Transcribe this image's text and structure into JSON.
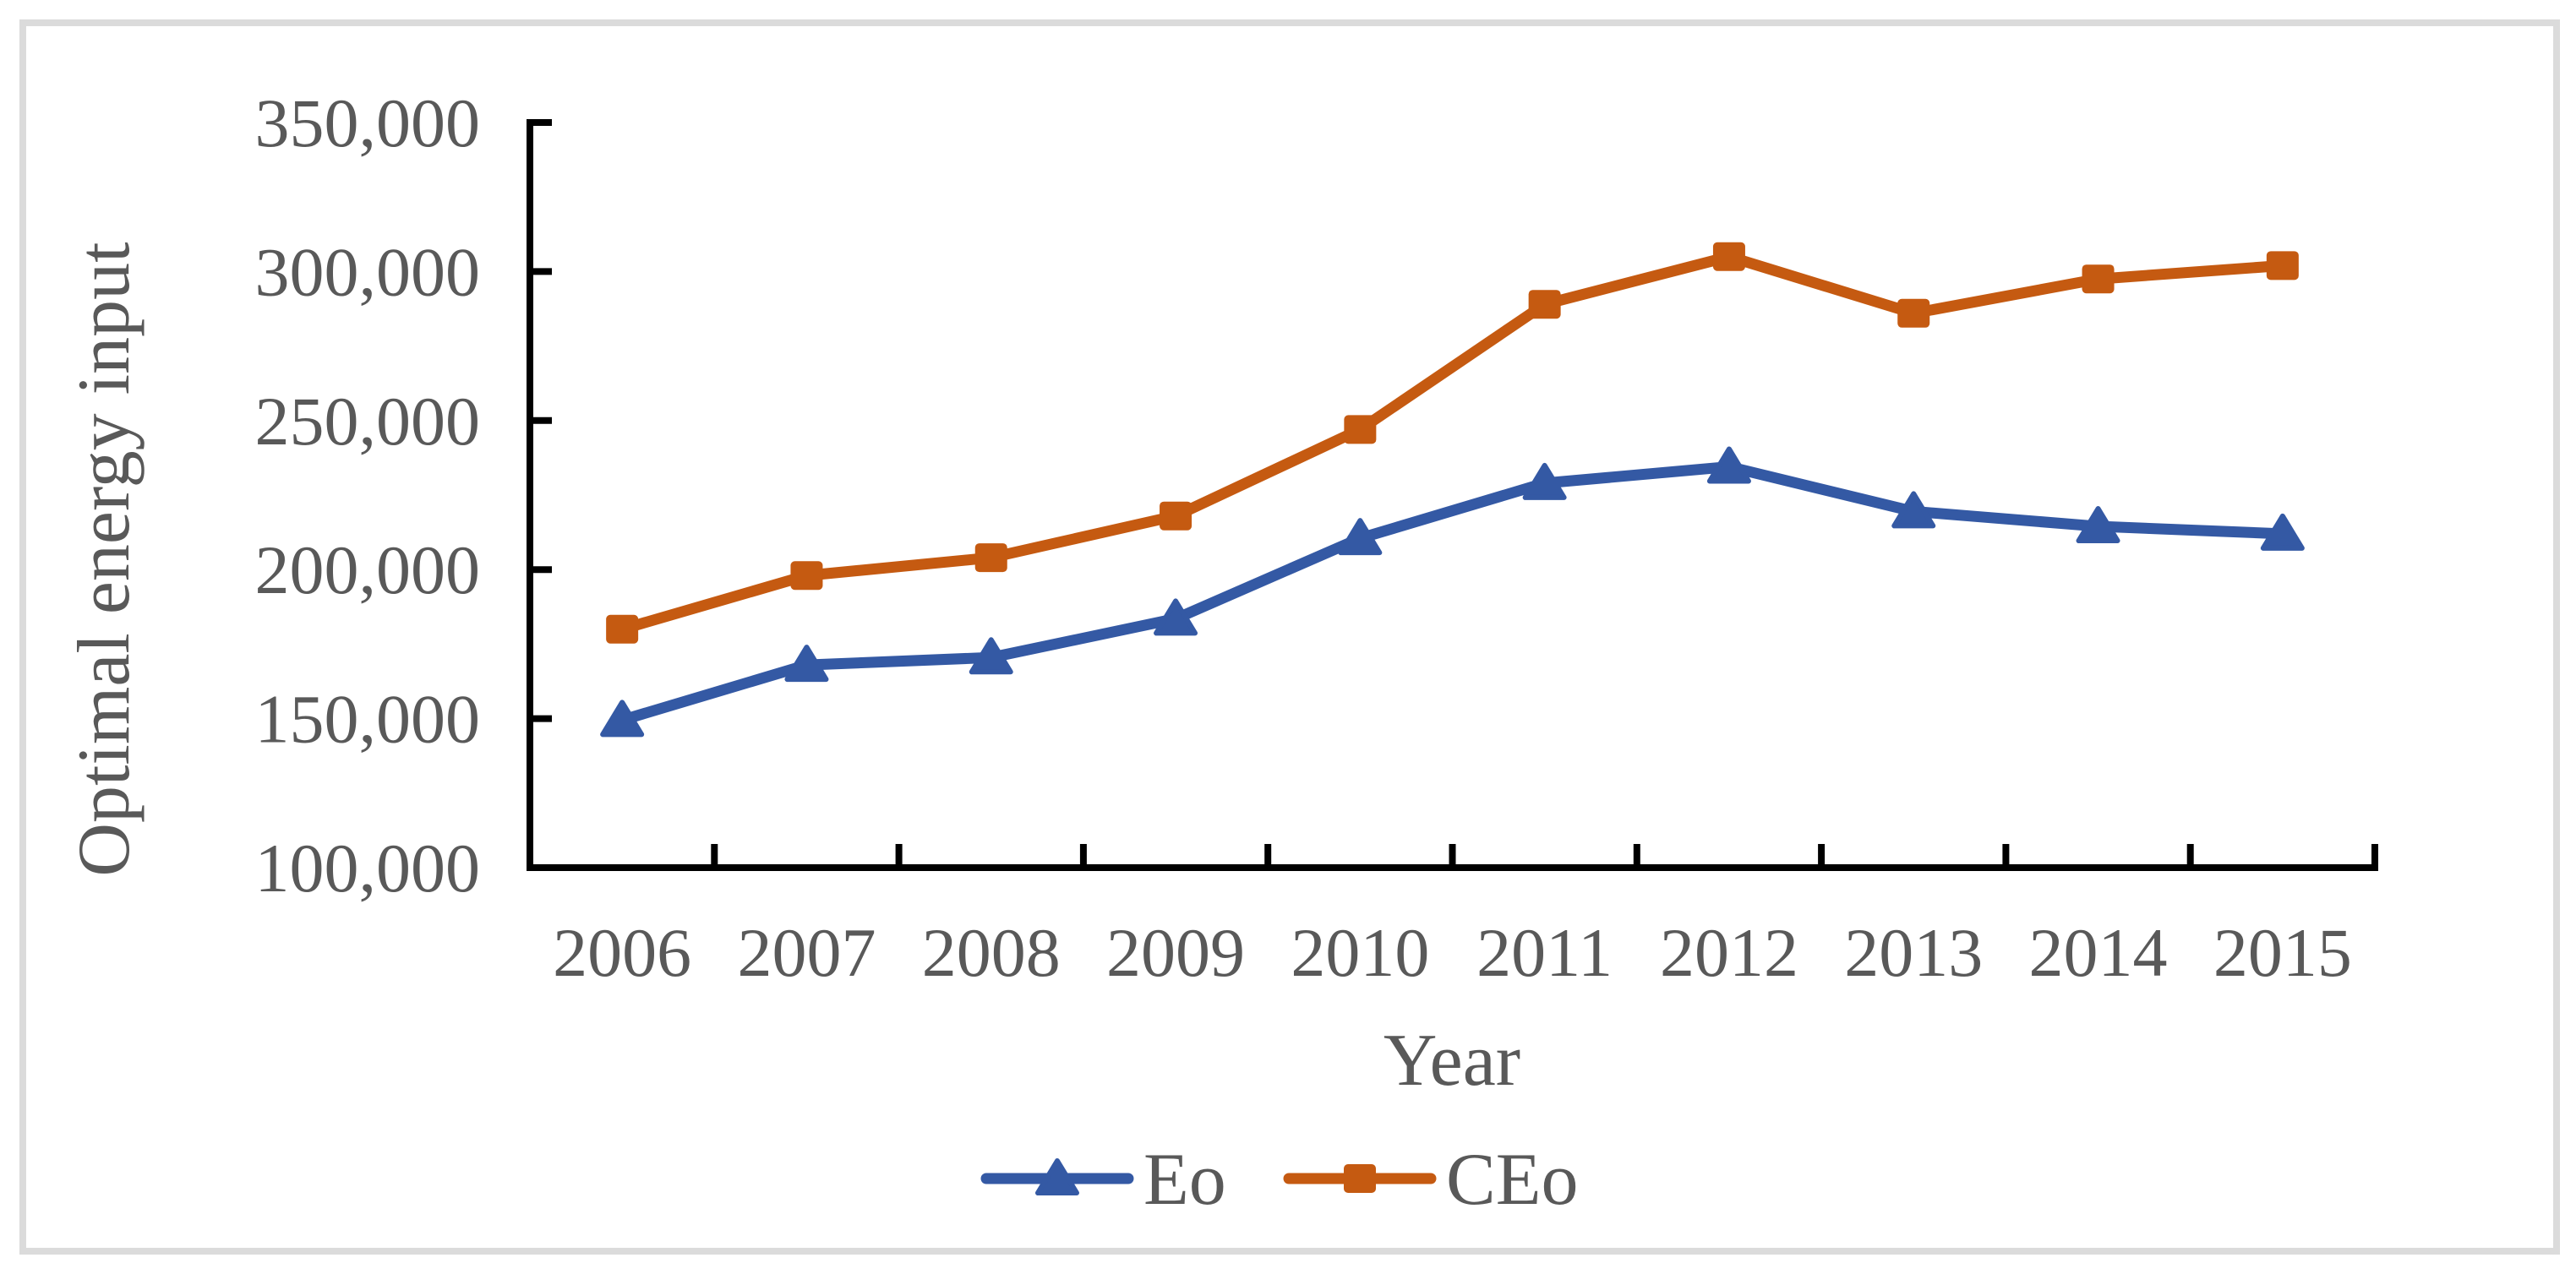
{
  "figure": {
    "background_color": "#FFFFFF",
    "border_color": "#DBDBDB",
    "axis_color": "#000000",
    "text_color": "#595959"
  },
  "chart_data": {
    "type": "line",
    "title": "",
    "xlabel": "Year",
    "ylabel": "Optimal energy input",
    "categories": [
      "2006",
      "2007",
      "2008",
      "2009",
      "2010",
      "2011",
      "2012",
      "2013",
      "2014",
      "2015"
    ],
    "series": [
      {
        "name": "Eo",
        "color": "#3459A4",
        "marker": "triangle",
        "values": [
          149500,
          168000,
          170500,
          183500,
          210500,
          229000,
          234500,
          219500,
          214500,
          212000
        ]
      },
      {
        "name": "CEo",
        "color": "#C55A11",
        "marker": "square",
        "values": [
          180000,
          198000,
          204000,
          218000,
          247000,
          289000,
          305000,
          286000,
          297500,
          302000
        ]
      }
    ],
    "ylim": [
      100000,
      350000
    ],
    "ytick_step": 50000,
    "ytick_labels": [
      "100,000",
      "150,000",
      "200,000",
      "250,000",
      "300,000",
      "350,000"
    ],
    "grid": false,
    "legend_position": "bottom",
    "legend_entries": [
      "Eo",
      "CEo"
    ]
  }
}
